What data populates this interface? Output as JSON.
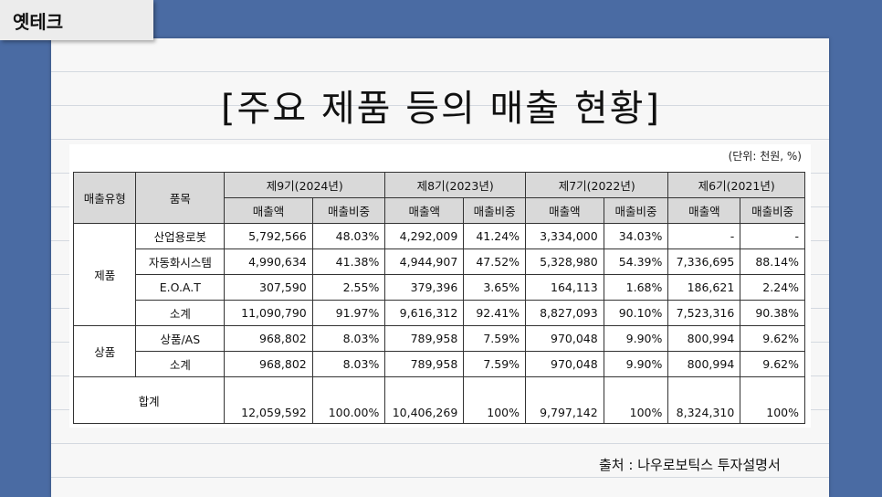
{
  "tab_label": "옛테크",
  "title": "[주요 제품 등의 매출 현황]",
  "unit": "(단위: 천원, %)",
  "headers": {
    "type": "매출유형",
    "item": "품목",
    "periods": [
      "제9기(2024년)",
      "제8기(2023년)",
      "제7기(2022년)",
      "제6기(2021년)"
    ],
    "sales": "매출액",
    "ratio": "매출비중"
  },
  "groups": [
    {
      "name": "제품",
      "rows": [
        {
          "item": "산업용로봇",
          "values": [
            "5,792,566",
            "48.03%",
            "4,292,009",
            "41.24%",
            "3,334,000",
            "34.03%",
            "-",
            "-"
          ]
        },
        {
          "item": "자동화시스템",
          "values": [
            "4,990,634",
            "41.38%",
            "4,944,907",
            "47.52%",
            "5,328,980",
            "54.39%",
            "7,336,695",
            "88.14%"
          ]
        },
        {
          "item": "E.O.A.T",
          "values": [
            "307,590",
            "2.55%",
            "379,396",
            "3.65%",
            "164,113",
            "1.68%",
            "186,621",
            "2.24%"
          ]
        },
        {
          "item": "소계",
          "values": [
            "11,090,790",
            "91.97%",
            "9,616,312",
            "92.41%",
            "8,827,093",
            "90.10%",
            "7,523,316",
            "90.38%"
          ]
        }
      ]
    },
    {
      "name": "상품",
      "rows": [
        {
          "item": "상품/AS",
          "values": [
            "968,802",
            "8.03%",
            "789,958",
            "7.59%",
            "970,048",
            "9.90%",
            "800,994",
            "9.62%"
          ]
        },
        {
          "item": "소계",
          "values": [
            "968,802",
            "8.03%",
            "789,958",
            "7.59%",
            "970,048",
            "9.90%",
            "800,994",
            "9.62%"
          ]
        }
      ]
    }
  ],
  "total": {
    "label": "합계",
    "values": [
      "12,059,592",
      "100.00%",
      "10,406,269",
      "100%",
      "9,797,142",
      "100%",
      "8,324,310",
      "100%"
    ]
  },
  "source": "출처 : 나우로보틱스 투자설명서"
}
